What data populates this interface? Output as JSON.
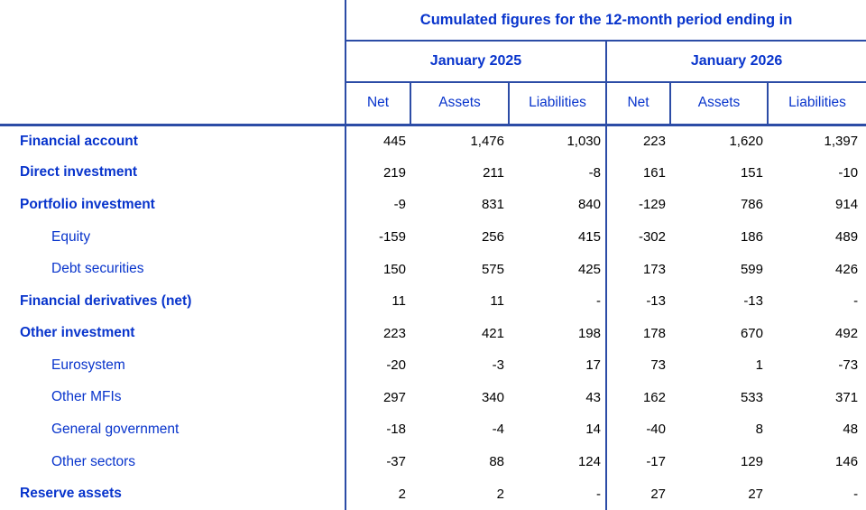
{
  "table": {
    "title": "Cumulated figures for the 12-month period ending in",
    "col_groups": [
      {
        "label": "January 2025",
        "columns": [
          "Net",
          "Assets",
          "Liabilities"
        ]
      },
      {
        "label": "January 2026",
        "columns": [
          "Net",
          "Assets",
          "Liabilities"
        ]
      }
    ],
    "rows": [
      {
        "label": "Financial account",
        "bold": true,
        "values": [
          "445",
          "1,476",
          "1,030",
          "223",
          "1,620",
          "1,397"
        ]
      },
      {
        "label": "Direct investment",
        "bold": true,
        "values": [
          "219",
          "211",
          "-8",
          "161",
          "151",
          "-10"
        ]
      },
      {
        "label": "Portfolio investment",
        "bold": true,
        "values": [
          "-9",
          "831",
          "840",
          "-129",
          "786",
          "914"
        ]
      },
      {
        "label": "Equity",
        "bold": false,
        "values": [
          "-159",
          "256",
          "415",
          "-302",
          "186",
          "489"
        ]
      },
      {
        "label": "Debt securities",
        "bold": false,
        "values": [
          "150",
          "575",
          "425",
          "173",
          "599",
          "426"
        ]
      },
      {
        "label": "Financial derivatives (net)",
        "bold": true,
        "values": [
          "11",
          "11",
          "-",
          "-13",
          "-13",
          "-"
        ]
      },
      {
        "label": "Other investment",
        "bold": true,
        "values": [
          "223",
          "421",
          "198",
          "178",
          "670",
          "492"
        ]
      },
      {
        "label": "Eurosystem",
        "bold": false,
        "values": [
          "-20",
          "-3",
          "17",
          "73",
          "1",
          "-73"
        ]
      },
      {
        "label": "Other MFIs",
        "bold": false,
        "values": [
          "297",
          "340",
          "43",
          "162",
          "533",
          "371"
        ]
      },
      {
        "label": "General government",
        "bold": false,
        "values": [
          "-18",
          "-4",
          "14",
          "-40",
          "8",
          "48"
        ]
      },
      {
        "label": "Other sectors",
        "bold": false,
        "values": [
          "-37",
          "88",
          "124",
          "-17",
          "129",
          "146"
        ]
      },
      {
        "label": "Reserve assets",
        "bold": true,
        "values": [
          "2",
          "2",
          "-",
          "27",
          "27",
          "-"
        ]
      }
    ],
    "colors": {
      "text_blue": "#0834CC",
      "border_blue": "#2C4CA6",
      "number_black": "#000000"
    }
  }
}
